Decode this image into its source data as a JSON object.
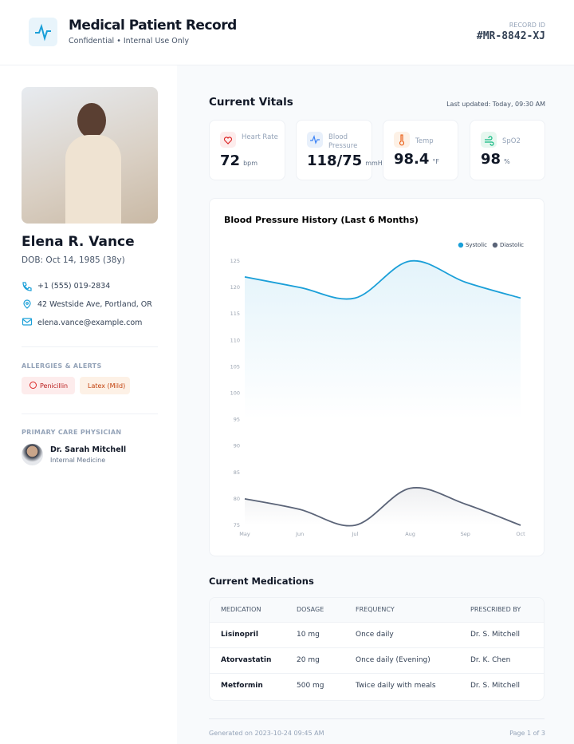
{
  "header": {
    "title": "Medical Patient Record",
    "subtitle": "Confidential • Internal Use Only",
    "record_id_label": "RECORD ID",
    "record_id": "#MR-8842-XJ"
  },
  "patient": {
    "name": "Elena R. Vance",
    "dob": "DOB: Oct 14, 1985 (38y)",
    "phone": "+1 (555) 019-2834",
    "address": "42 Westside Ave, Portland, OR",
    "email": "elena.vance@example.com"
  },
  "allergies": {
    "heading": "ALLERGIES & ALERTS",
    "items": [
      "Penicillin",
      "Latex (Mild)"
    ]
  },
  "physician": {
    "heading": "PRIMARY CARE PHYSICIAN",
    "name": "Dr. Sarah Mitchell",
    "specialty": "Internal Medicine"
  },
  "vitals": {
    "title": "Current Vitals",
    "last_updated": "Last updated: Today, 09:30 AM",
    "items": [
      {
        "label": "Heart Rate",
        "value": 72,
        "unit": "bpm"
      },
      {
        "label": "Blood Pressure",
        "value": "118/75",
        "unit": "mmHg"
      },
      {
        "label": "Temp",
        "value": 98.4,
        "unit": "°F"
      },
      {
        "label": "SpO2",
        "value": 98,
        "unit": "%"
      }
    ]
  },
  "chart_data": {
    "type": "line",
    "title": "Blood Pressure History (Last 6 Months)",
    "categories": [
      "May",
      "Jun",
      "Jul",
      "Aug",
      "Sep",
      "Oct"
    ],
    "series": [
      {
        "name": "Systolic",
        "color": "#1a9fd8",
        "values": [
          122,
          120,
          118,
          125,
          121,
          118
        ]
      },
      {
        "name": "Diastolic",
        "color": "#5b6478",
        "values": [
          80,
          78,
          75,
          82,
          79,
          75
        ]
      }
    ],
    "ylim": [
      75,
      125
    ],
    "yticks": [
      75,
      80,
      85,
      90,
      95,
      100,
      105,
      110,
      115,
      120,
      125
    ],
    "legend": "top-right"
  },
  "medications": {
    "title": "Current Medications",
    "columns": [
      "MEDICATION",
      "DOSAGE",
      "FREQUENCY",
      "PRESCRIBED BY"
    ],
    "rows": [
      [
        "Lisinopril",
        "10 mg",
        "Once daily",
        "Dr. S. Mitchell"
      ],
      [
        "Atorvastatin",
        "20 mg",
        "Once daily (Evening)",
        "Dr. K. Chen"
      ],
      [
        "Metformin",
        "500 mg",
        "Twice daily with meals",
        "Dr. S. Mitchell"
      ]
    ]
  },
  "footer": {
    "generated": "Generated on 2023-10-24 09:45 AM",
    "page": "Page 1 of 3"
  }
}
